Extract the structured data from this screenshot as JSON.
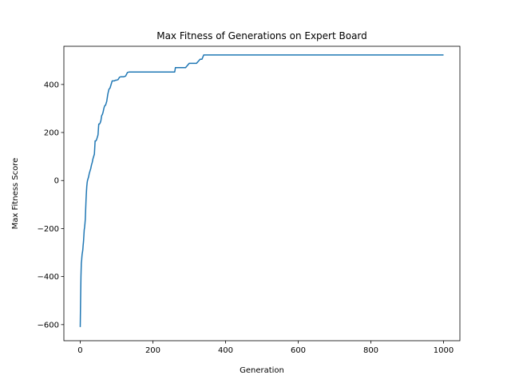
{
  "chart_data": {
    "type": "line",
    "title": "Max Fitness of Generations on Expert Board",
    "xlabel": "Generation",
    "ylabel": "Max Fitness Score",
    "xlim": [
      -45,
      1045
    ],
    "ylim": [
      -667,
      559
    ],
    "xticks": [
      0,
      200,
      400,
      600,
      800,
      1000
    ],
    "yticks": [
      -600,
      -400,
      -200,
      0,
      200,
      400
    ],
    "grid": false,
    "line_color": "#1f77b4",
    "series": [
      {
        "x": [
          0,
          1,
          2,
          3,
          4,
          5,
          6,
          7,
          8,
          9,
          10,
          11,
          12,
          13,
          14,
          15,
          16,
          17,
          18,
          19,
          20,
          21,
          23,
          25,
          27,
          29,
          31,
          33,
          35,
          37,
          39,
          41,
          43,
          45,
          47,
          49,
          51,
          53,
          55,
          57,
          59,
          61,
          63,
          65,
          67,
          70,
          73,
          76,
          79,
          82,
          85,
          88,
          91,
          94,
          97,
          100,
          104,
          108,
          112,
          116,
          120,
          125,
          130,
          135,
          140,
          145,
          150,
          155,
          160,
          170,
          180,
          200,
          220,
          240,
          260,
          262,
          270,
          280,
          290,
          300,
          310,
          320,
          330,
          335,
          340,
          360,
          400,
          500,
          600,
          700,
          800,
          900,
          1000
        ],
        "y": [
          -610,
          -500,
          -400,
          -345,
          -330,
          -310,
          -300,
          -290,
          -270,
          -255,
          -230,
          -205,
          -195,
          -180,
          -160,
          -120,
          -80,
          -50,
          -25,
          -10,
          0,
          5,
          15,
          30,
          40,
          50,
          65,
          75,
          90,
          100,
          110,
          165,
          165,
          170,
          180,
          190,
          235,
          235,
          240,
          250,
          270,
          275,
          285,
          300,
          310,
          315,
          330,
          360,
          380,
          385,
          400,
          415,
          415,
          415,
          418,
          418,
          420,
          430,
          432,
          432,
          432,
          435,
          450,
          452,
          452,
          452,
          452,
          452,
          452,
          452,
          452,
          452,
          452,
          452,
          452,
          470,
          470,
          470,
          470,
          488,
          488,
          488,
          505,
          505,
          523,
          523,
          523,
          523,
          523,
          523,
          523,
          523,
          523
        ]
      }
    ]
  }
}
